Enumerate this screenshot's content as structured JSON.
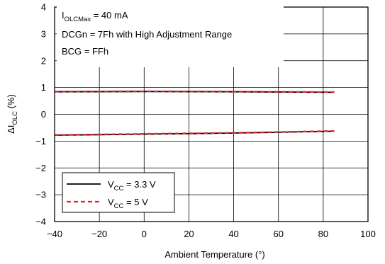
{
  "chart_data": {
    "type": "line",
    "xlabel": "Ambient Temperature (°)",
    "ylabel_main": "ΔI",
    "ylabel_sub": "OLC",
    "ylabel_unit": " (%)",
    "xlim": [
      -40,
      100
    ],
    "ylim": [
      -4,
      4
    ],
    "x_ticks": [
      -40,
      -20,
      0,
      20,
      40,
      60,
      80,
      100
    ],
    "y_ticks": [
      -4,
      -3,
      -2,
      -1,
      0,
      1,
      2,
      3,
      4
    ],
    "grid": true,
    "legend_position": "bottom-left",
    "annotations": {
      "line1_main": "I",
      "line1_sub": "OLCMax",
      "line1_rest": " = 40 mA",
      "line2": "DCGn = 7Fh with High Adjustment Range",
      "line3": "BCG = FFh"
    },
    "series": [
      {
        "group": "upper",
        "legend_main": "V",
        "legend_sub": "CC",
        "legend_rest": " = 3.3 V",
        "color": "#000000",
        "dash": "solid",
        "x": [
          -40,
          0,
          40,
          85
        ],
        "y": [
          0.84,
          0.85,
          0.84,
          0.82
        ]
      },
      {
        "group": "upper",
        "legend_main": "V",
        "legend_sub": "CC",
        "legend_rest": " = 5 V",
        "color": "#e8232a",
        "dash": "dashed",
        "x": [
          -40,
          0,
          40,
          85
        ],
        "y": [
          0.85,
          0.86,
          0.85,
          0.83
        ]
      },
      {
        "group": "lower",
        "color": "#000000",
        "dash": "solid",
        "x": [
          -40,
          -20,
          0,
          20,
          40,
          60,
          85
        ],
        "y": [
          -0.78,
          -0.76,
          -0.74,
          -0.72,
          -0.7,
          -0.67,
          -0.63
        ]
      },
      {
        "group": "lower",
        "color": "#e8232a",
        "dash": "dashed",
        "x": [
          -40,
          -20,
          0,
          20,
          40,
          60,
          85
        ],
        "y": [
          -0.77,
          -0.75,
          -0.73,
          -0.71,
          -0.69,
          -0.66,
          -0.62
        ]
      }
    ]
  }
}
